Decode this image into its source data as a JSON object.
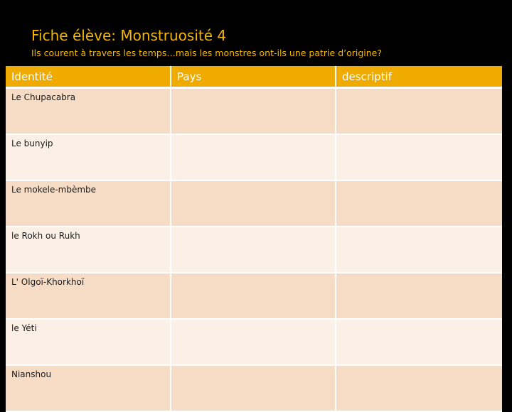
{
  "title": "Fiche élève: Monstruosité 4",
  "subtitle": "Ils courent à travers les temps…mais les monstres ont-ils une patrie d’origine?",
  "table": {
    "headers": [
      "Identité",
      "Pays",
      "descriptif"
    ],
    "rows": [
      {
        "identite": "Le Chupacabra",
        "pays": "",
        "descriptif": ""
      },
      {
        "identite": "Le bunyip",
        "pays": "",
        "descriptif": ""
      },
      {
        "identite": "Le mokele-mbèmbe",
        "pays": "",
        "descriptif": ""
      },
      {
        "identite": "le Rokh ou Rukh",
        "pays": "",
        "descriptif": ""
      },
      {
        "identite": "L' Olgoï-Khorkhoï",
        "pays": "",
        "descriptif": ""
      },
      {
        "identite": "le Yéti",
        "pays": "",
        "descriptif": ""
      },
      {
        "identite": "Nianshou",
        "pays": "",
        "descriptif": ""
      }
    ]
  },
  "colors": {
    "background": "#000000",
    "title": "#f5b800",
    "header": "#f0ab00",
    "row_odd": "#f7dcc5",
    "row_even": "#faf0e6"
  }
}
